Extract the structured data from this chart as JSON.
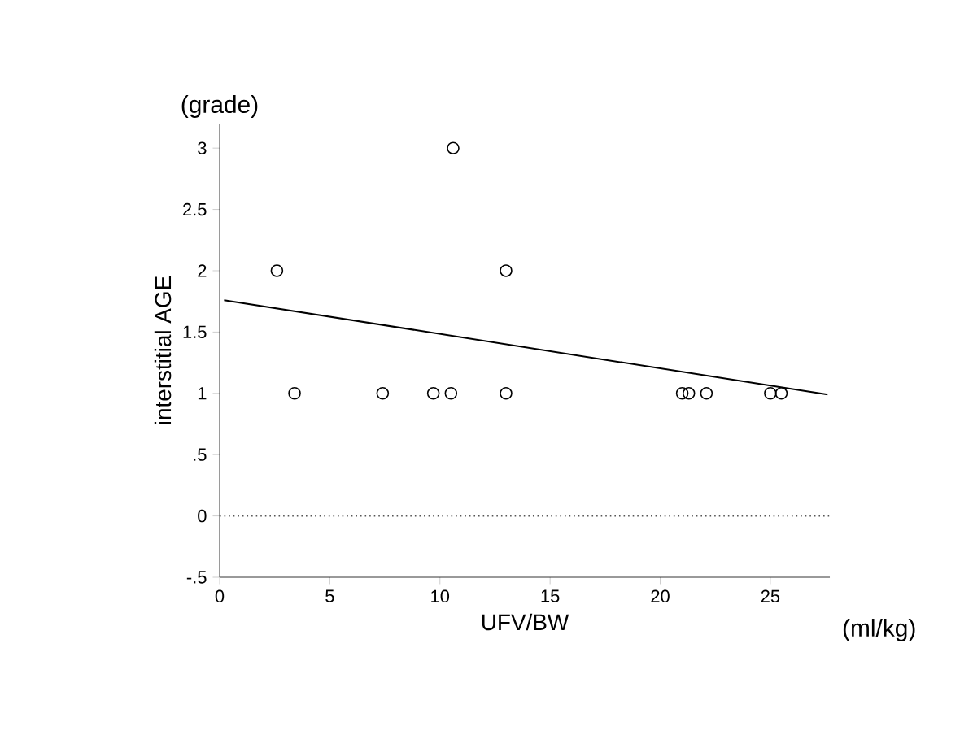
{
  "chart_data": {
    "type": "scatter",
    "xlabel": "UFV/BW",
    "ylabel": "interstitial AGE",
    "annotations": [
      "(grade)",
      "(ml/kg)"
    ],
    "xlim": [
      0,
      27.7
    ],
    "ylim": [
      -0.5,
      3.2
    ],
    "xticks": [
      0,
      5,
      10,
      15,
      20,
      25
    ],
    "yticks": [
      {
        "value": -0.5,
        "label": "-.5"
      },
      0,
      {
        "value": 0.5,
        "label": ".5"
      },
      1,
      1.5,
      2,
      2.5,
      3
    ],
    "marker": "circle",
    "series": [
      {
        "color": "#000000",
        "x": [
          2.6,
          3.4,
          7.4,
          9.7,
          10.5,
          10.6,
          13.0,
          13.0,
          21.0,
          21.3,
          22.1,
          25.0,
          25.5
        ],
        "values": [
          2,
          1,
          1,
          1,
          1,
          3,
          2,
          1,
          1,
          1,
          1,
          1,
          1
        ]
      },
      {
        "type": "line",
        "color": "#000000",
        "x": [
          0.2,
          27.6
        ],
        "values": [
          1.76,
          0.99
        ],
        "marker": "none",
        "line_style": "solid"
      }
    ],
    "ref_lines": [
      {
        "axis": "y",
        "value": 0,
        "color": "#555555",
        "line_style": "dotted"
      }
    ]
  }
}
